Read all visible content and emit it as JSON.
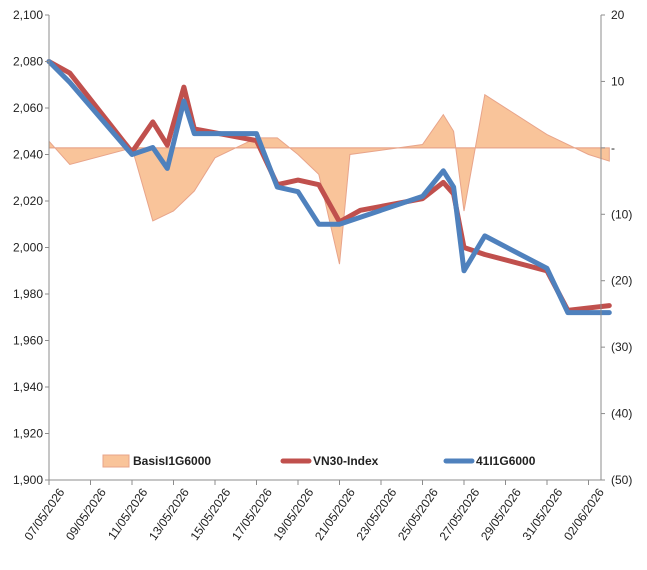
{
  "chart_data": {
    "type": "line",
    "x": [
      "07/05/2026",
      "08/05/2026",
      "09/05/2026",
      "10/05/2026",
      "11/05/2026",
      "12/05/2026",
      "13/05/2026",
      "14/05/2026",
      "15/05/2026",
      "16/05/2026",
      "17/05/2026",
      "18/05/2026",
      "19/05/2026",
      "20/05/2026",
      "21/05/2026",
      "22/05/2026",
      "23/05/2026",
      "24/05/2026",
      "25/05/2026",
      "26/05/2026",
      "27/05/2026",
      "28/05/2026",
      "29/05/2026",
      "30/05/2026",
      "31/05/2026",
      "01/06/2026",
      "02/06/2026",
      "03/06/2026"
    ],
    "x_tick_labels": [
      "07/05/2026",
      "09/05/2026",
      "11/05/2026",
      "13/05/2026",
      "15/05/2026",
      "17/05/2026",
      "19/05/2026",
      "21/05/2026",
      "23/05/2026",
      "25/05/2026",
      "27/05/2026",
      "29/05/2026",
      "31/05/2026",
      "02/06/2026"
    ],
    "left_axis": {
      "ylim": [
        1900,
        2100
      ],
      "ticks": [
        "1,900",
        "1,920",
        "1,940",
        "1,960",
        "1,980",
        "2,000",
        "2,020",
        "2,040",
        "2,060",
        "2,080",
        "2,100"
      ]
    },
    "right_axis": {
      "ylim": [
        -50,
        20
      ],
      "ticks": [
        "(50)",
        "(40)",
        "(30)",
        "(20)",
        "(10)",
        "-",
        "10",
        "20"
      ]
    },
    "series": [
      {
        "name": "BasisI1G6000",
        "type": "area",
        "axis": "right",
        "color": "#F9C49A",
        "edge_color": "#E8A48A",
        "points": [
          [
            "07/05/2026",
            2
          ],
          [
            "07/05/2026",
            1
          ],
          [
            "08/05/2026",
            -2.5
          ],
          [
            "11/05/2026",
            0
          ],
          [
            "12/05/2026",
            -11
          ],
          [
            "13/05/2026",
            -9.5
          ],
          [
            "14/05/2026",
            -6.5
          ],
          [
            "15/05/2026",
            -1.5
          ],
          [
            "17/05/2026",
            1.5
          ],
          [
            "18/05/2026",
            1.5
          ],
          [
            "19/05/2026",
            -1
          ],
          [
            "20/05/2026",
            -4
          ],
          [
            "21/05/2026",
            -17.5
          ],
          [
            "21.5/05/2026",
            -1
          ],
          [
            "25/05/2026",
            0.5
          ],
          [
            "26/05/2026",
            5
          ],
          [
            "26.5/05/2026",
            2.5
          ],
          [
            "27/05/2026",
            -9.5
          ],
          [
            "28/05/2026",
            8
          ],
          [
            "31/05/2026",
            2
          ],
          [
            "02/06/2026",
            -1
          ],
          [
            "03/06/2026",
            -2
          ]
        ]
      },
      {
        "name": "VN30-Index",
        "type": "line",
        "axis": "left",
        "color": "#C0504D",
        "points": [
          [
            "07/05/2026",
            2080
          ],
          [
            "08/05/2026",
            2075
          ],
          [
            "11/05/2026",
            2041
          ],
          [
            "12/05/2026",
            2054
          ],
          [
            "12.7/05/2026",
            2044
          ],
          [
            "13.5/05/2026",
            2069
          ],
          [
            "14/05/2026",
            2051
          ],
          [
            "17/05/2026",
            2046
          ],
          [
            "18/05/2026",
            2027
          ],
          [
            "19/05/2026",
            2029
          ],
          [
            "20/05/2026",
            2027
          ],
          [
            "21/05/2026",
            2011
          ],
          [
            "22/05/2026",
            2016
          ],
          [
            "25/05/2026",
            2021
          ],
          [
            "26/05/2026",
            2028
          ],
          [
            "26.5/05/2026",
            2023
          ],
          [
            "27/05/2026",
            2000
          ],
          [
            "28/05/2026",
            1997
          ],
          [
            "31/05/2026",
            1990
          ],
          [
            "01/06/2026",
            1973
          ],
          [
            "03/06/2026",
            1975
          ]
        ]
      },
      {
        "name": "41I1G6000",
        "type": "line",
        "axis": "left",
        "color": "#4F81BD",
        "points": [
          [
            "07/05/2026",
            2080
          ],
          [
            "08/05/2026",
            2071
          ],
          [
            "11/05/2026",
            2040
          ],
          [
            "12/05/2026",
            2043
          ],
          [
            "12.7/05/2026",
            2034
          ],
          [
            "13.5/05/2026",
            2063
          ],
          [
            "14/05/2026",
            2049
          ],
          [
            "17/05/2026",
            2049
          ],
          [
            "18/05/2026",
            2026
          ],
          [
            "19/05/2026",
            2024
          ],
          [
            "20/05/2026",
            2010
          ],
          [
            "21/05/2026",
            2010
          ],
          [
            "25/05/2026",
            2022
          ],
          [
            "26/05/2026",
            2033
          ],
          [
            "26.5/05/2026",
            2026
          ],
          [
            "27/05/2026",
            1990
          ],
          [
            "28/05/2026",
            2005
          ],
          [
            "31/05/2026",
            1991
          ],
          [
            "01/06/2026",
            1972
          ],
          [
            "03/06/2026",
            1972
          ]
        ]
      }
    ],
    "legend": {
      "placement": "bottom-inside"
    },
    "grid": false
  }
}
